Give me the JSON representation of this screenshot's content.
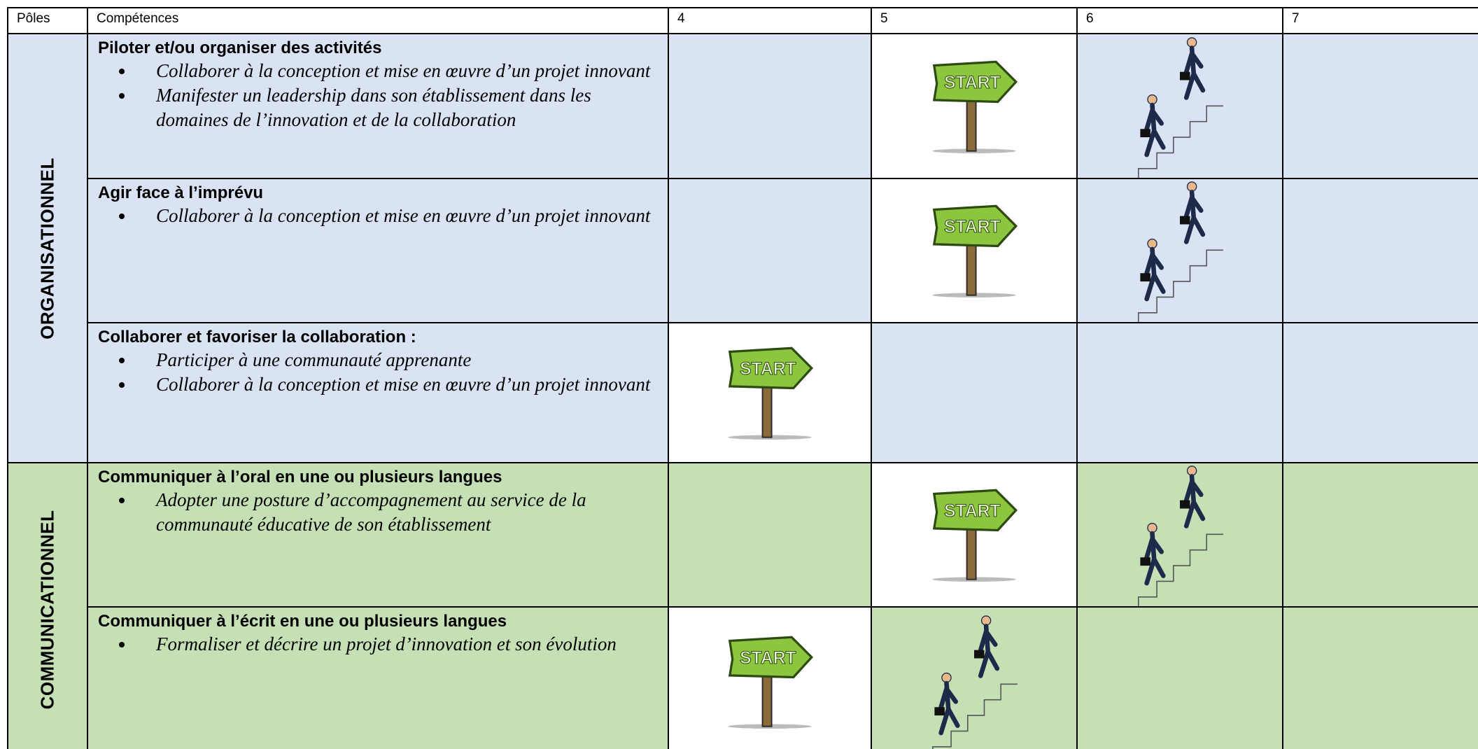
{
  "header": [
    "Pôles",
    "Compétences",
    "4",
    "5",
    "6",
    "7"
  ],
  "sign_text": "START",
  "poles": [
    {
      "label": "ORGANISATIONNEL",
      "rows": [
        {
          "title": "Piloter et/ou organiser des activités",
          "bullets": [
            "Collaborer à la conception et mise en œuvre d’un projet innovant",
            "Manifester un leadership dans son établissement dans les domaines de l’innovation et de la collaboration"
          ]
        },
        {
          "title": "Agir face à l’imprévu",
          "bullets": [
            "Collaborer à la conception et mise en œuvre d’un projet innovant"
          ]
        },
        {
          "title": "Collaborer et favoriser la collaboration :",
          "bullets": [
            "Participer à une communauté apprenante",
            "Collaborer à la conception et mise en œuvre d’un projet innovant"
          ]
        }
      ]
    },
    {
      "label": "COMMUNICATIONNEL",
      "rows": [
        {
          "title": "Communiquer à l’oral en une ou plusieurs langues",
          "bullets": [
            "Adopter une posture d’accompagnement au service de la communauté éducative de son établissement"
          ]
        },
        {
          "title": "Communiquer à l’écrit en une ou plusieurs langues",
          "bullets": [
            "Formaliser et décrire un projet d’innovation et son évolution"
          ]
        }
      ]
    }
  ]
}
